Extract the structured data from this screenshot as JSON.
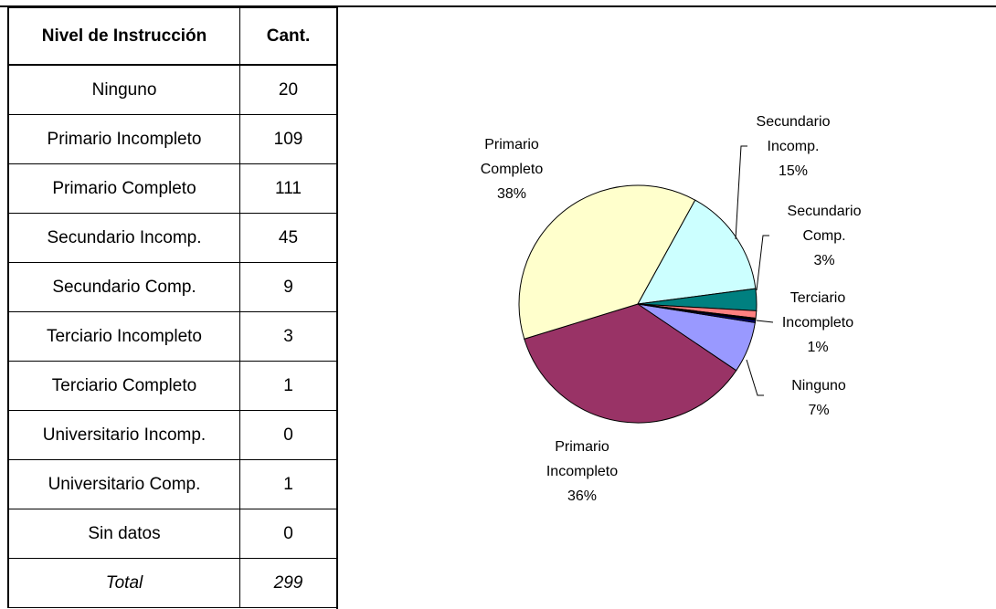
{
  "table": {
    "header": [
      "Nivel de Instrucción",
      "Cant."
    ],
    "rows": [
      [
        "Ninguno",
        20
      ],
      [
        "Primario Incompleto",
        109
      ],
      [
        "Primario Completo",
        111
      ],
      [
        "Secundario Incomp.",
        45
      ],
      [
        "Secundario Comp.",
        9
      ],
      [
        "Terciario Incompleto",
        3
      ],
      [
        "Terciario Completo",
        1
      ],
      [
        "Universitario Incomp.",
        0
      ],
      [
        "Universitario Comp.",
        1
      ],
      [
        "Sin datos",
        0
      ],
      [
        "Total",
        299
      ]
    ]
  },
  "chart_data": {
    "type": "pie",
    "categories": [
      "Ninguno",
      "Primario Incompleto",
      "Primario Completo",
      "Secundario Incomp.",
      "Secundario Comp.",
      "Terciario Incompleto",
      null,
      null,
      null,
      null
    ],
    "values": [
      7,
      36,
      38,
      15,
      3,
      1,
      0.3,
      0,
      0.3,
      0
    ],
    "value_labels": [
      "7%",
      "36%",
      "38%",
      "15%",
      "3%",
      "1%",
      null,
      null,
      null,
      null
    ],
    "colors": [
      "#9999ff",
      "#993366",
      "#ffffcc",
      "#ccffff",
      "#008080",
      "#ff8080",
      "#000000",
      "#ccccff",
      "#000080",
      "#ff00ff"
    ]
  }
}
